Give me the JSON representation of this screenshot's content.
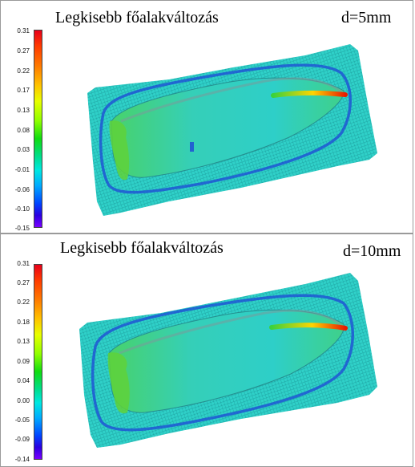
{
  "panels": [
    {
      "title": "Legkisebb főalakváltozás",
      "d_label": "d=5mm",
      "scale_ticks": [
        "0.31",
        "0.27",
        "0.22",
        "0.17",
        "0.13",
        "0.08",
        "0.03",
        "-0.01",
        "-0.06",
        "-0.10",
        "-0.15"
      ]
    },
    {
      "title": "Legkisebb főalakváltozás",
      "d_label": "d=10mm",
      "scale_ticks": [
        "0.31",
        "0.27",
        "0.22",
        "0.18",
        "0.13",
        "0.09",
        "0.04",
        "0.00",
        "-0.05",
        "-0.09",
        "-0.14"
      ]
    }
  ],
  "colors": {
    "mesh_base": "#2fd0c8",
    "mesh_grid": "#1a9a9a",
    "groove": "#1e4fd6",
    "hot": "#e81c00",
    "warm": "#ffd400",
    "green": "#3bd23b"
  }
}
